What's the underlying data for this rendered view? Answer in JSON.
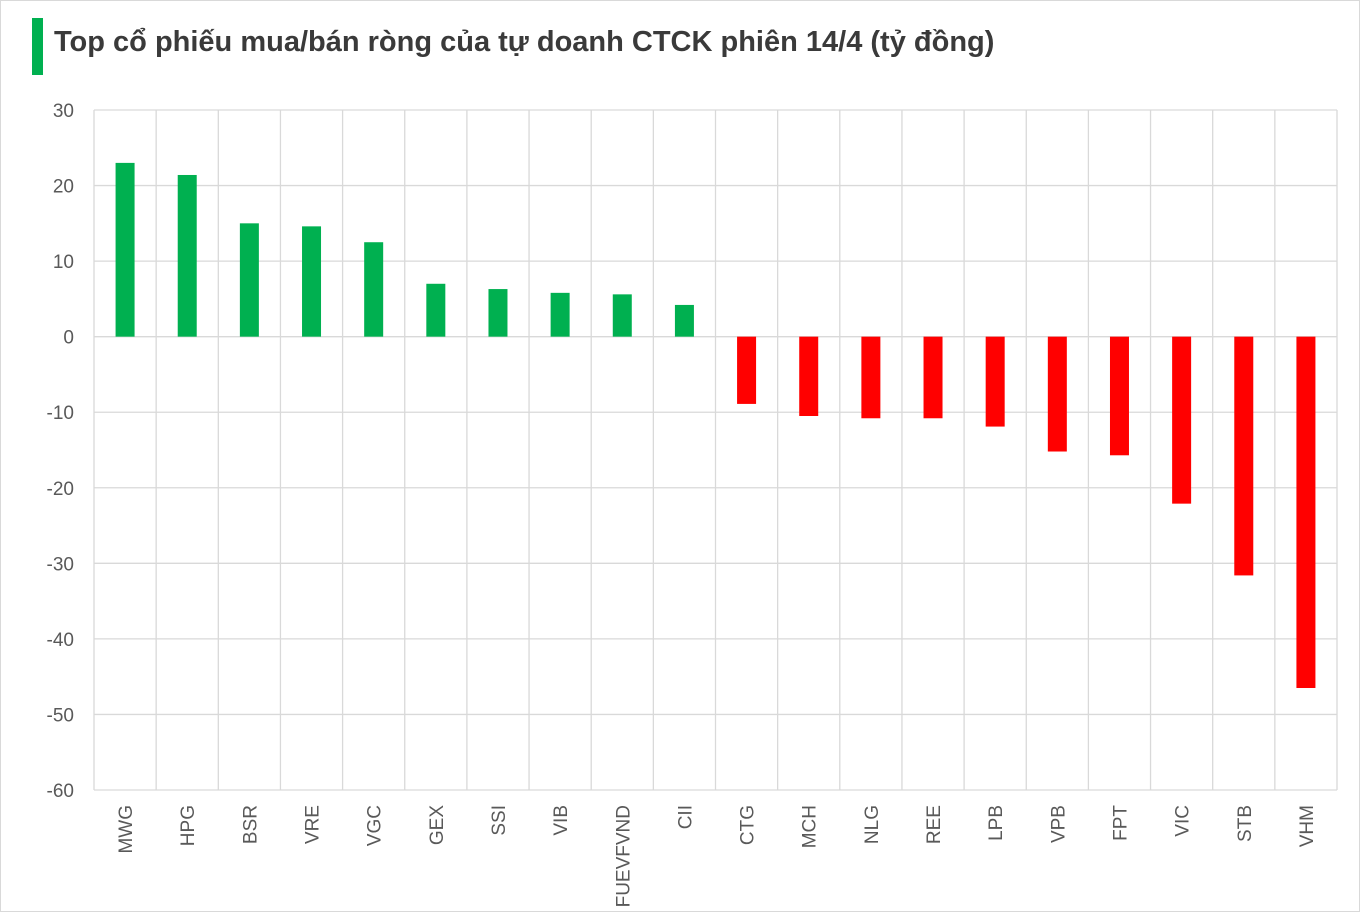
{
  "chart_data": {
    "type": "bar",
    "title": "Top cổ phiếu mua/bán ròng của tự doanh CTCK phiên 14/4 (tỷ đồng)",
    "xlabel": "",
    "ylabel": "",
    "ylim": [
      -60,
      30
    ],
    "yticks": [
      30,
      20,
      10,
      0,
      -10,
      -20,
      -30,
      -40,
      -50,
      -60
    ],
    "grid": true,
    "legend": "none",
    "categories": [
      "MWG",
      "HPG",
      "BSR",
      "VRE",
      "VGC",
      "GEX",
      "SSI",
      "VIB",
      "FUEVFVND",
      "CII",
      "CTG",
      "MCH",
      "NLG",
      "REE",
      "LPB",
      "VPB",
      "FPT",
      "VIC",
      "STB",
      "VHM"
    ],
    "values": [
      23.0,
      21.4,
      15.0,
      14.6,
      12.5,
      7.0,
      6.3,
      5.8,
      5.6,
      4.2,
      -8.9,
      -10.5,
      -10.8,
      -10.8,
      -11.9,
      -15.2,
      -15.7,
      -22.1,
      -31.6,
      -46.5
    ],
    "colors": {
      "positive": "#00b050",
      "negative": "#ff0000",
      "grid": "#d9d9d9",
      "accent": "#00b050"
    }
  }
}
